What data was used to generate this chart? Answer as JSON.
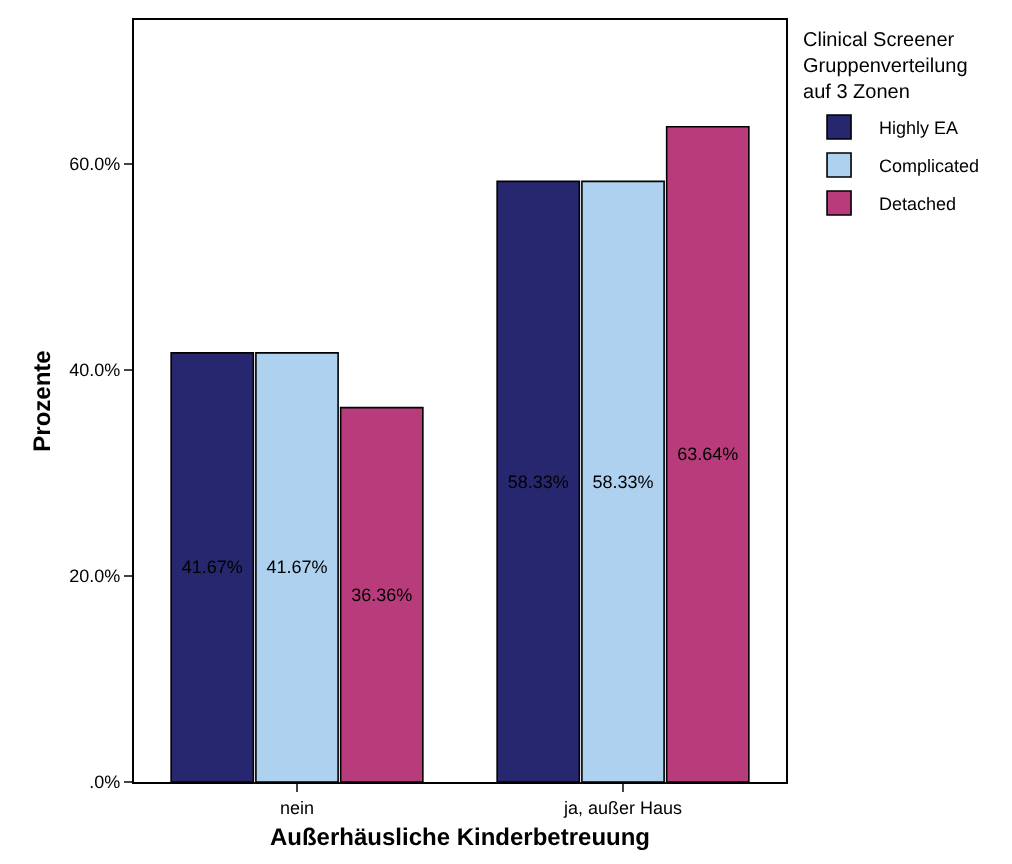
{
  "chart_data": {
    "type": "bar",
    "xlabel": "Außerhäusliche Kinderbetreuung",
    "ylabel": "Prozente",
    "legend_title": "Clinical Screener Gruppenverteilung auf 3 Zonen",
    "categories": [
      "nein",
      "ja, außer Haus"
    ],
    "series": [
      {
        "name": "Highly EA",
        "color": "#27276f",
        "values": [
          41.67,
          58.33
        ],
        "value_labels": [
          "41.67%",
          "58.33%"
        ]
      },
      {
        "name": "Complicated",
        "color": "#aed1ef",
        "values": [
          41.67,
          58.33
        ],
        "value_labels": [
          "41.67%",
          "58.33%"
        ]
      },
      {
        "name": "Detached",
        "color": "#b83c7c",
        "values": [
          36.36,
          63.64
        ],
        "value_labels": [
          "36.36%",
          "63.64%"
        ]
      }
    ],
    "ylim": [
      0,
      74
    ],
    "yticks": [
      {
        "value": 0,
        "label": ".0%"
      },
      {
        "value": 20,
        "label": "20.0%"
      },
      {
        "value": 40,
        "label": "40.0%"
      },
      {
        "value": 60,
        "label": "60.0%"
      }
    ],
    "grid": false,
    "legend": "top right"
  }
}
